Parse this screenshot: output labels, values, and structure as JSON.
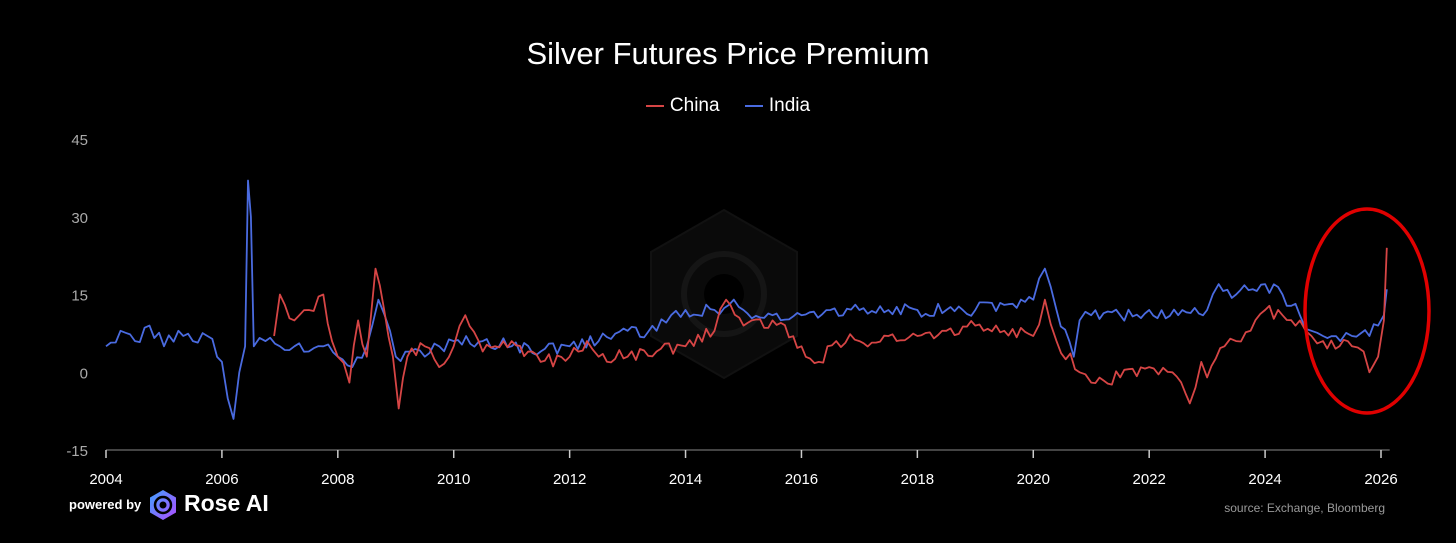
{
  "chart_data": {
    "type": "line",
    "title": "Silver Futures Price Premium",
    "xlabel": "",
    "ylabel": "",
    "xlim": [
      2004,
      2026.15
    ],
    "ylim": [
      -15,
      45
    ],
    "x_ticks": [
      "2004",
      "2006",
      "2008",
      "2010",
      "2012",
      "2014",
      "2016",
      "2018",
      "2020",
      "2022",
      "2024",
      "2026"
    ],
    "y_ticks": [
      "45",
      "30",
      "15",
      "0",
      "-15"
    ],
    "grid": false,
    "legend_position": "top-center",
    "annotation": "red ellipse highlighting 2025-2026 spike",
    "series": [
      {
        "name": "China",
        "color": "#d64545",
        "x": [
          2006.9,
          2007,
          2007.25,
          2007.5,
          2007.75,
          2007.9,
          2008,
          2008.2,
          2008.35,
          2008.5,
          2008.65,
          2008.8,
          2008.95,
          2009.05,
          2009.2,
          2009.5,
          2009.75,
          2010,
          2010.2,
          2010.5,
          2011,
          2011.5,
          2012,
          2012.3,
          2012.5,
          2013,
          2013.5,
          2014,
          2014.5,
          2014.7,
          2015,
          2015.5,
          2016,
          2016.3,
          2016.6,
          2017,
          2017.5,
          2018,
          2018.5,
          2019,
          2019.5,
          2020,
          2020.2,
          2020.4,
          2020.8,
          2021,
          2021.5,
          2022,
          2022.4,
          2022.7,
          2022.9,
          2023,
          2023.3,
          2023.5,
          2023.75,
          2024,
          2024.3,
          2024.6,
          2024.8,
          2025,
          2025.5,
          2025.7,
          2025.8,
          2025.95,
          2026.05,
          2026.1
        ],
        "y": [
          7,
          15,
          10,
          12,
          15,
          6,
          3,
          -2,
          10,
          3,
          20,
          12,
          3,
          -7,
          3,
          5,
          1,
          5,
          11,
          4,
          6,
          2,
          3,
          6,
          3,
          3,
          4,
          5,
          8,
          14,
          9,
          10,
          5,
          2,
          6,
          6,
          7,
          7,
          8,
          9,
          8,
          7,
          14,
          6,
          0,
          -2,
          -1,
          1,
          0,
          -6,
          2,
          -1,
          5,
          6,
          8,
          12,
          11,
          10,
          7,
          6,
          5,
          4,
          0,
          3,
          10,
          24
        ]
      },
      {
        "name": "India",
        "color": "#4a6be0",
        "x": [
          2004,
          2004.25,
          2004.5,
          2004.75,
          2005,
          2005.25,
          2005.5,
          2005.75,
          2006,
          2006.1,
          2006.2,
          2006.3,
          2006.4,
          2006.45,
          2006.5,
          2006.55,
          2006.75,
          2007,
          2007.25,
          2007.5,
          2007.75,
          2008,
          2008.25,
          2008.5,
          2008.7,
          2008.9,
          2009,
          2009.25,
          2009.5,
          2009.75,
          2010,
          2010.5,
          2011,
          2011.5,
          2012,
          2012.5,
          2013,
          2013.5,
          2013.75,
          2014,
          2014.5,
          2014.75,
          2015,
          2015.5,
          2016,
          2016.5,
          2017,
          2017.5,
          2018,
          2018.5,
          2019,
          2019.5,
          2020,
          2020.2,
          2020.4,
          2020.7,
          2020.8,
          2021,
          2021.5,
          2022,
          2022.5,
          2023,
          2023.2,
          2023.5,
          2024,
          2024.3,
          2024.6,
          2024.8,
          2025,
          2025.3,
          2025.5,
          2025.8,
          2025.95,
          2026.05,
          2026.1
        ],
        "y": [
          5,
          8,
          6,
          9,
          5,
          8,
          6,
          7,
          2,
          -5,
          -9,
          0,
          5,
          37,
          30,
          5,
          6,
          5,
          5,
          4,
          5,
          3,
          1,
          5,
          14,
          8,
          3,
          4,
          3,
          5,
          6,
          6,
          5,
          4,
          5,
          6,
          8,
          8,
          11,
          12,
          12,
          13,
          12,
          11,
          11,
          12,
          12,
          12,
          12,
          12,
          12,
          13,
          14,
          20,
          12,
          3,
          10,
          11,
          11,
          12,
          11,
          12,
          17,
          15,
          17,
          15,
          11,
          8,
          7,
          6,
          7,
          7,
          9,
          11,
          16
        ]
      }
    ]
  },
  "footer": {
    "powered_by": "powered by",
    "brand": "Rose AI",
    "source": "source: Exchange, Bloomberg"
  }
}
